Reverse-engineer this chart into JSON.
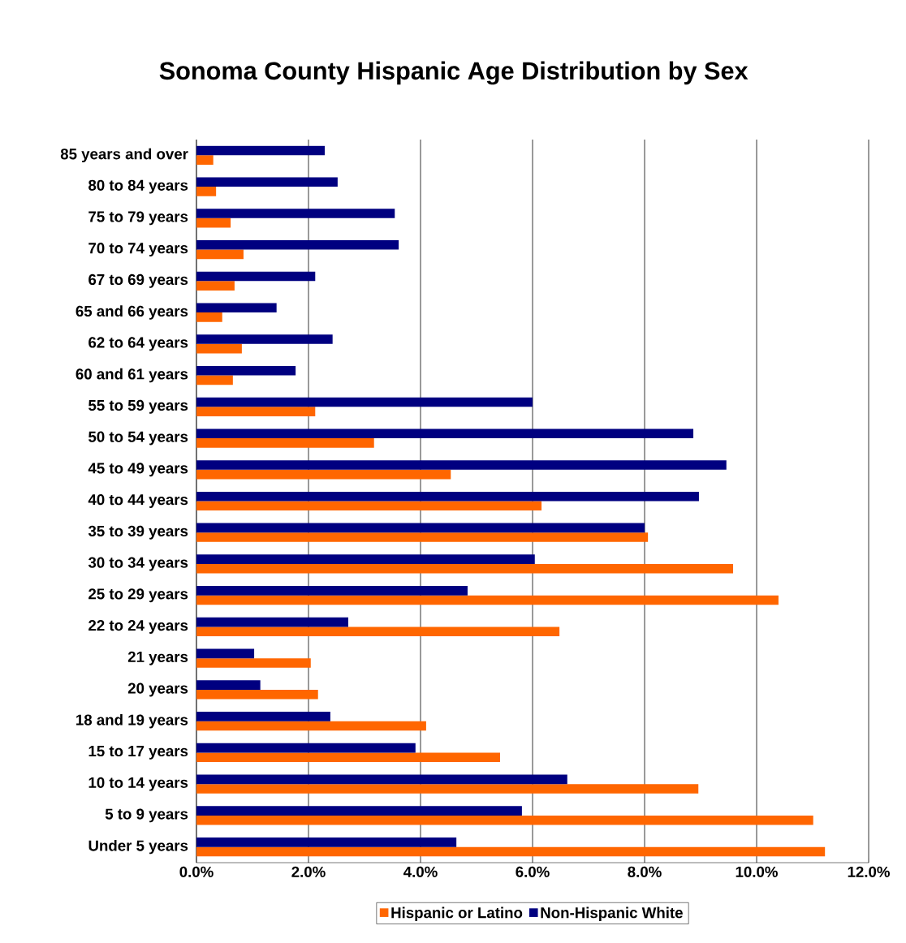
{
  "chart_data": {
    "type": "bar",
    "orientation": "horizontal",
    "title": "Sonoma County Hispanic Age Distribution by Sex",
    "categories": [
      "85 years and over",
      "80 to 84 years",
      "75 to 79 years",
      "70 to 74 years",
      "67 to 69 years",
      "65 and 66 years",
      "62 to 64 years",
      "60 and 61 years",
      "55 to 59 years",
      "50 to 54 years",
      "45 to 49 years",
      "40 to 44 years",
      "35 to 39 years",
      "30 to 34 years",
      "25 to 29 years",
      "22 to 24 years",
      "21 years",
      "20 years",
      "18 and 19 years",
      "15 to 17 years",
      "10 to 14 years",
      "5 to 9 years",
      "Under 5 years"
    ],
    "series": [
      {
        "name": "Hispanic or Latino",
        "color": "#ff6600",
        "values": [
          0.3,
          0.35,
          0.61,
          0.84,
          0.68,
          0.46,
          0.81,
          0.65,
          2.12,
          3.17,
          4.54,
          6.16,
          8.06,
          9.58,
          10.39,
          6.48,
          2.04,
          2.17,
          4.1,
          5.42,
          8.96,
          11.01,
          11.22
        ]
      },
      {
        "name": "Non-Hispanic White",
        "color": "#000080",
        "values": [
          2.29,
          2.52,
          3.54,
          3.61,
          2.12,
          1.43,
          2.43,
          1.77,
          6.0,
          8.87,
          9.46,
          8.97,
          8.0,
          6.04,
          4.84,
          2.71,
          1.03,
          1.14,
          2.39,
          3.91,
          6.62,
          5.81,
          4.64
        ]
      }
    ],
    "xlim": [
      0,
      12
    ],
    "xticks": [
      {
        "value": 0,
        "label": "0.0%"
      },
      {
        "value": 2,
        "label": "2.0%"
      },
      {
        "value": 4,
        "label": "4.0%"
      },
      {
        "value": 6,
        "label": "6.0%"
      },
      {
        "value": 8,
        "label": "8.0%"
      },
      {
        "value": 10,
        "label": "10.0%"
      },
      {
        "value": 12,
        "label": "12.0%"
      }
    ],
    "grid": "x",
    "legend": "bottom"
  }
}
